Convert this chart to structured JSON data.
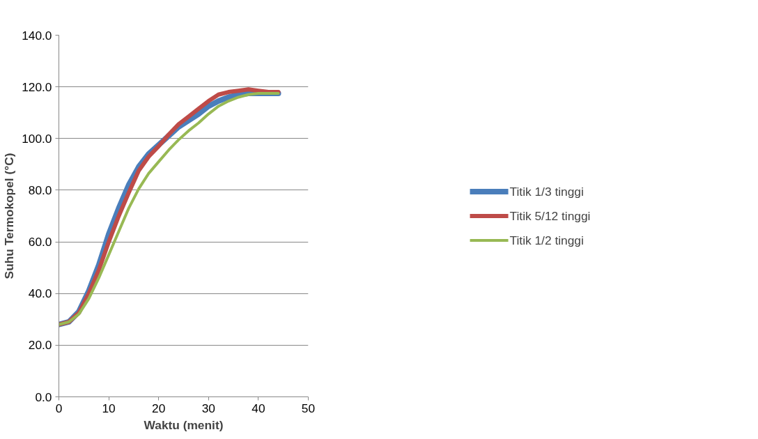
{
  "chart_data": {
    "type": "line",
    "xlabel": "Waktu (menit)",
    "ylabel": "Suhu Termokopel (°C)",
    "x": [
      0,
      2,
      4,
      6,
      8,
      10,
      12,
      14,
      16,
      18,
      20,
      22,
      24,
      26,
      28,
      30,
      32,
      34,
      36,
      38,
      40,
      42,
      44
    ],
    "series": [
      {
        "name": "Titik 1/3 tinggi",
        "color": "#4a7ebb",
        "values": [
          28,
          29,
          33,
          41,
          51,
          63,
          73,
          82,
          89,
          94,
          97.5,
          101,
          104.5,
          107,
          109.5,
          112.5,
          114.5,
          116,
          117,
          117.5,
          117.5,
          117.5,
          117.5
        ]
      },
      {
        "name": "Titik 5/12 tinggi",
        "color": "#be4b48",
        "values": [
          28,
          29,
          32.5,
          40,
          49,
          60,
          70,
          79,
          87.5,
          93,
          97,
          101.5,
          105.5,
          108.5,
          111.5,
          114.5,
          117,
          118,
          118.5,
          119,
          118.5,
          118,
          118
        ]
      },
      {
        "name": "Titik 1/2 tinggi",
        "color": "#98b954",
        "values": [
          28,
          29,
          32,
          38,
          46,
          55,
          64,
          73,
          80.5,
          86.5,
          91,
          95.5,
          99.5,
          103,
          106,
          109.5,
          112.5,
          114.5,
          116,
          117,
          117.5,
          117.5,
          117.5
        ]
      }
    ],
    "xlim": [
      0,
      50
    ],
    "xticks": [
      0,
      10,
      20,
      30,
      40,
      50
    ],
    "ylim": [
      0,
      140
    ],
    "yticks": [
      {
        "value": 0,
        "label": "0.0"
      },
      {
        "value": 20,
        "label": "20.0"
      },
      {
        "value": 40,
        "label": "40.0"
      },
      {
        "value": 60,
        "label": "60.0"
      },
      {
        "value": 80,
        "label": "80.0"
      },
      {
        "value": 100,
        "label": "100.0"
      },
      {
        "value": 120,
        "label": "120.0"
      },
      {
        "value": 140,
        "label": "140.0"
      }
    ],
    "grid": "y",
    "legend": "right",
    "marker": "none",
    "line_style": "solid"
  }
}
